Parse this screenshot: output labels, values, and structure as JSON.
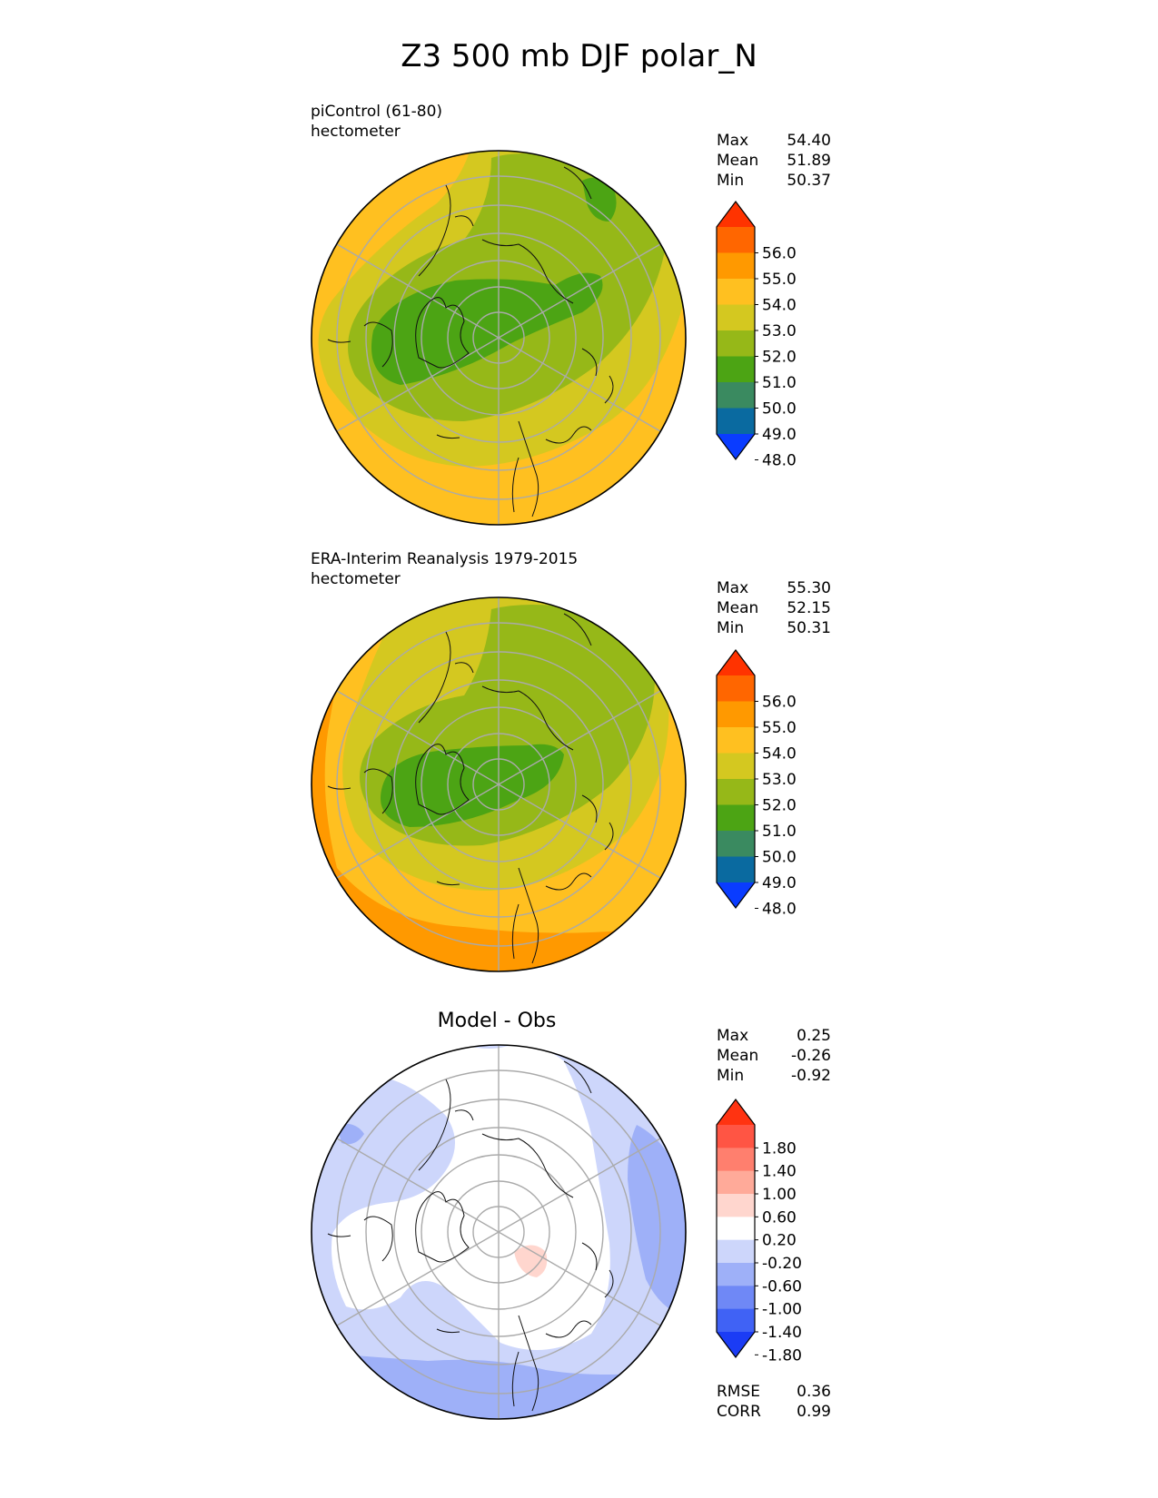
{
  "title": "Z3 500 mb DJF polar_N",
  "panels": [
    {
      "id": "test",
      "label": "piControl (61-80)",
      "units": "hectometer",
      "stats": [
        {
          "label": "Max",
          "value": "54.40"
        },
        {
          "label": "Mean",
          "value": "51.89"
        },
        {
          "label": "Min",
          "value": "50.37"
        }
      ]
    },
    {
      "id": "ref",
      "label": "ERA-Interim Reanalysis 1979-2015",
      "units": "hectometer",
      "stats": [
        {
          "label": "Max",
          "value": "55.30"
        },
        {
          "label": "Mean",
          "value": "52.15"
        },
        {
          "label": "Min",
          "value": "50.31"
        }
      ]
    },
    {
      "id": "diff",
      "title": "Model - Obs",
      "stats": [
        {
          "label": "Max",
          "value": "0.25"
        },
        {
          "label": "Mean",
          "value": "-0.26"
        },
        {
          "label": "Min",
          "value": "-0.92"
        }
      ],
      "extra_stats": [
        {
          "label": "RMSE",
          "value": "0.36"
        },
        {
          "label": "CORR",
          "value": "0.99"
        }
      ]
    }
  ],
  "colorbars": {
    "main": {
      "ticks": [
        "56.0",
        "55.0",
        "54.0",
        "53.0",
        "52.0",
        "51.0",
        "50.0",
        "49.0",
        "48.0"
      ],
      "colors": [
        "#ff3300",
        "#ff6600",
        "#ff9900",
        "#ffc020",
        "#d4c820",
        "#96b818",
        "#4ca414",
        "#3a8a60",
        "#0a6aa0",
        "#0a3cff"
      ]
    },
    "diff": {
      "ticks": [
        "1.80",
        "1.40",
        "1.00",
        "0.60",
        "0.20",
        "-0.20",
        "-0.60",
        "-1.00",
        "-1.40",
        "-1.80"
      ],
      "colors": [
        "#ff3311",
        "#ff5544",
        "#ff7f6e",
        "#ffaa99",
        "#ffd6ce",
        "#ffffff",
        "#cdd6fb",
        "#9eb0f8",
        "#6f88f6",
        "#4062f5",
        "#1b3cf5"
      ]
    }
  }
}
